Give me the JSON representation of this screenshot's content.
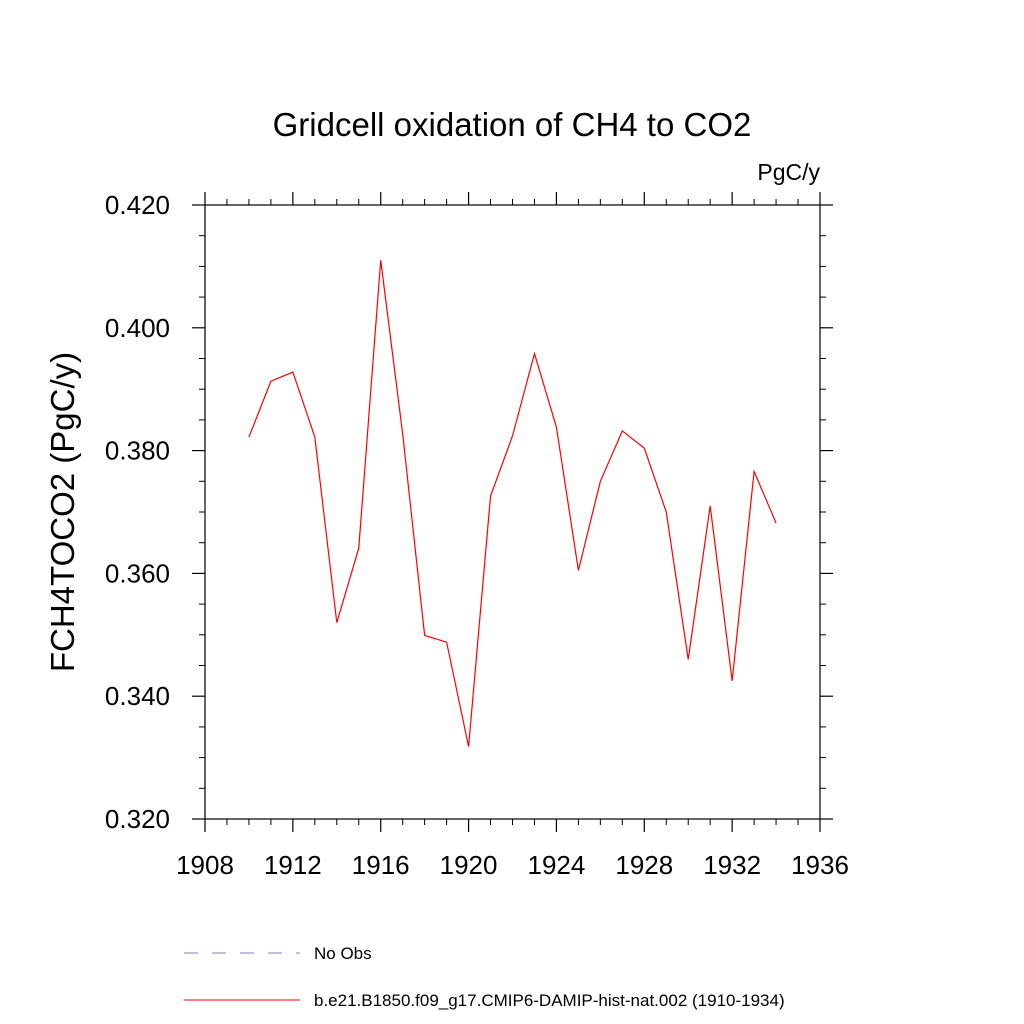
{
  "chart_data": {
    "type": "line",
    "title": "Gridcell oxidation of CH4 to CO2",
    "units_label": "PgC/y",
    "ylabel": "FCH4TOCO2  (PgC/y)",
    "xlabel": "",
    "xlim": [
      1908,
      1936
    ],
    "ylim": [
      0.32,
      0.42
    ],
    "x_ticks": [
      1908,
      1912,
      1916,
      1920,
      1924,
      1928,
      1932,
      1936
    ],
    "x_tick_labels": [
      "1908",
      "1912",
      "1916",
      "1920",
      "1924",
      "1928",
      "1932",
      "1936"
    ],
    "y_ticks": [
      0.32,
      0.34,
      0.36,
      0.38,
      0.4,
      0.42
    ],
    "y_tick_labels": [
      "0.320",
      "0.340",
      "0.360",
      "0.380",
      "0.400",
      "0.420"
    ],
    "grid": false,
    "legend_position": "bottom",
    "series": [
      {
        "name": "b.e21.B1850.f09_g17.CMIP6-DAMIP-hist-nat.002 (1910-1934)",
        "color": "#ff0000",
        "style": "solid",
        "x": [
          1910,
          1911,
          1912,
          1913,
          1914,
          1915,
          1916,
          1917,
          1918,
          1919,
          1920,
          1921,
          1922,
          1923,
          1924,
          1925,
          1926,
          1927,
          1928,
          1929,
          1930,
          1931,
          1932,
          1933,
          1934
        ],
        "values": [
          0.3822,
          0.3913,
          0.3928,
          0.3822,
          0.352,
          0.3641,
          0.411,
          0.3827,
          0.3499,
          0.3488,
          0.3318,
          0.3726,
          0.3824,
          0.3958,
          0.3838,
          0.3605,
          0.375,
          0.3832,
          0.3804,
          0.37,
          0.346,
          0.371,
          0.3425,
          0.3766,
          0.3682
        ]
      }
    ],
    "legend": [
      {
        "label": "No Obs",
        "color": "#8080c0",
        "style": "dashed"
      },
      {
        "label": "b.e21.B1850.f09_g17.CMIP6-DAMIP-hist-nat.002 (1910-1934)",
        "color": "#ff0000",
        "style": "solid"
      }
    ]
  }
}
